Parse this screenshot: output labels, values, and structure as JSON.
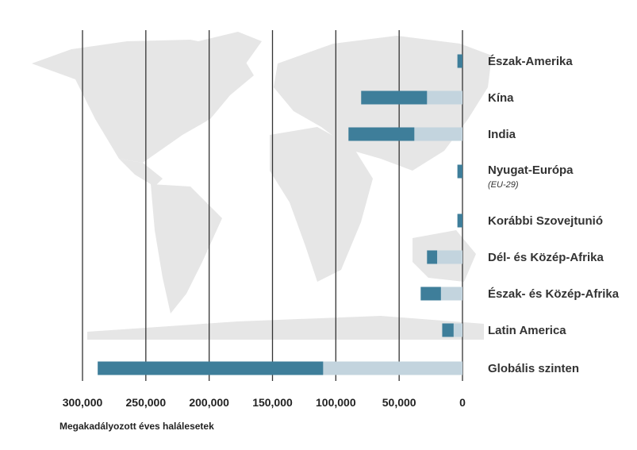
{
  "chart_data": {
    "type": "bar",
    "orientation": "horizontal",
    "stacked": true,
    "x_reversed": true,
    "xlabel": "Megakadályozott éves halálesetek",
    "ylabel": "",
    "xlim": [
      0,
      300000
    ],
    "x_ticks": [
      300000,
      250000,
      200000,
      150000,
      100000,
      50000,
      0
    ],
    "x_tick_labels": [
      "300,000",
      "250,000",
      "200,000",
      "150,000",
      "100,000",
      "50,000",
      "0"
    ],
    "grid": "vertical lines",
    "background": "grey world map",
    "categories": [
      {
        "label": "Észak-Amerika",
        "sublabel": ""
      },
      {
        "label": "Kína",
        "sublabel": ""
      },
      {
        "label": "India",
        "sublabel": ""
      },
      {
        "label": "Nyugat-Európa",
        "sublabel": "(EU-29)"
      },
      {
        "label": "Korábbi Szovejtunió",
        "sublabel": ""
      },
      {
        "label": "Dél- és Közép-Afrika",
        "sublabel": ""
      },
      {
        "label": "Észak- és Közép-Afrika",
        "sublabel": ""
      },
      {
        "label": "Latin America",
        "sublabel": ""
      },
      {
        "label": "Globális szinten",
        "sublabel": ""
      }
    ],
    "series": [
      {
        "color": "#3e7e9a",
        "values": [
          0,
          0,
          0,
          0,
          0,
          0,
          0,
          0,
          0
        ]
      },
      {
        "color": "#c3d4de",
        "values": [
          0,
          28000,
          38000,
          0,
          0,
          20000,
          17000,
          7000,
          110000
        ]
      },
      {
        "color": "#3e7e9a",
        "values": [
          4000,
          52000,
          52000,
          4000,
          4000,
          8000,
          16000,
          9000,
          178000
        ]
      }
    ]
  },
  "colors": {
    "dark_bar": "#3e7e9a",
    "light_bar": "#c3d4de",
    "map": "#e6e6e6",
    "grid": "#333333"
  }
}
